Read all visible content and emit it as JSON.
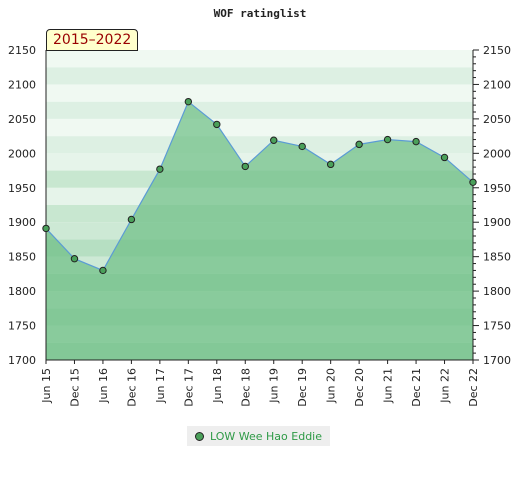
{
  "chart_data": {
    "type": "area",
    "title": "WOF ratinglist",
    "range_label": "2015–2022",
    "categories": [
      "Jun 15",
      "Dec 15",
      "Jun 16",
      "Dec 16",
      "Jun 17",
      "Dec 17",
      "Jun 18",
      "Dec 18",
      "Jun 19",
      "Dec 19",
      "Jun 20",
      "Dec 20",
      "Jun 21",
      "Dec 21",
      "Jun 22",
      "Dec 22"
    ],
    "series": [
      {
        "name": "LOW Wee Hao Eddie",
        "values": [
          1891,
          1847,
          1830,
          1904,
          1977,
          2075,
          2042,
          1981,
          2019,
          2010,
          1984,
          2013,
          2020,
          2017,
          1994,
          1958
        ]
      }
    ],
    "ylim": [
      1700,
      2150
    ],
    "y_ticks": [
      1700,
      1750,
      1800,
      1850,
      1900,
      1950,
      2000,
      2050,
      2100,
      2150
    ],
    "legend": "bottom",
    "colors": {
      "line": "#5b9bd5",
      "area": "#6fbf87",
      "marker": "#4aa05a"
    }
  }
}
